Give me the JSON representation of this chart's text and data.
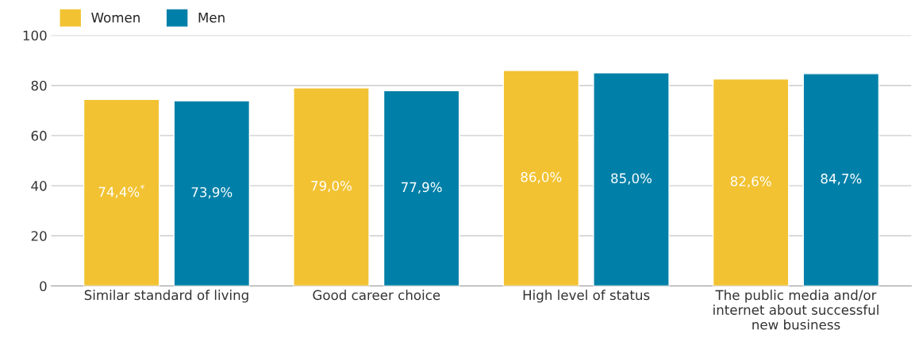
{
  "chart_data": {
    "type": "bar",
    "categories": [
      "Similar standard of living",
      "Good career choice",
      "High level of status",
      "The public media and/or\ninternet about successful\nnew business"
    ],
    "series": [
      {
        "name": "Women",
        "color": "#f2c232",
        "values": [
          74.4,
          79.0,
          86.0,
          82.6
        ],
        "value_labels": [
          "74,4%$^{*}$",
          "79,0%",
          "86,0%",
          "82,6%"
        ]
      },
      {
        "name": "Men",
        "color": "#0080a8",
        "values": [
          73.9,
          77.9,
          85.0,
          84.7
        ],
        "value_labels": [
          "73,9%",
          "77,9%",
          "85,0%",
          "84,7%"
        ]
      }
    ],
    "ylim": [
      0,
      100
    ],
    "yticks": [
      0,
      20,
      40,
      60,
      80,
      100
    ],
    "grid": "y",
    "legend": "top left"
  }
}
